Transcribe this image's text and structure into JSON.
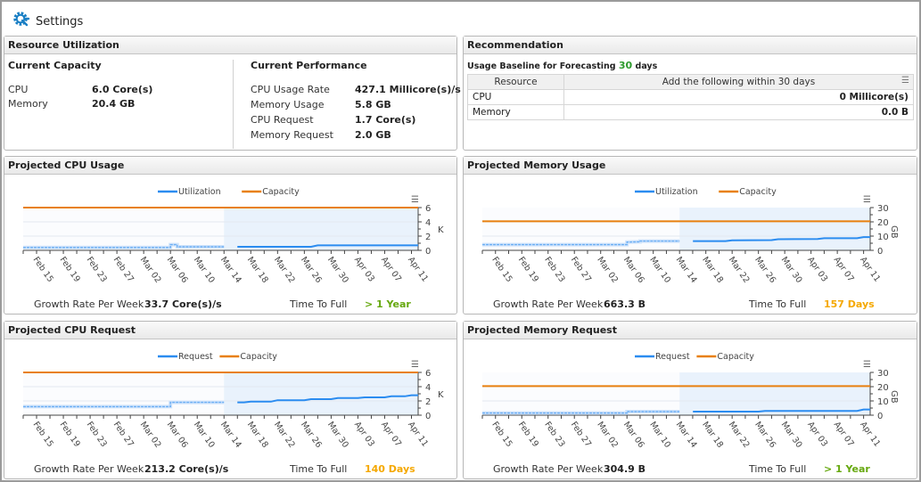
{
  "topbar": {
    "settings_label": "Settings",
    "icon": "gear-wrench-icon"
  },
  "resource_utilization": {
    "title": "Resource Utilization",
    "current_capacity": {
      "title": "Current Capacity",
      "rows": [
        {
          "label": "CPU",
          "value": "6.0 Core(s)"
        },
        {
          "label": "Memory",
          "value": "20.4 GB"
        }
      ]
    },
    "current_performance": {
      "title": "Current Performance",
      "rows": [
        {
          "label": "CPU Usage Rate",
          "value": "427.1 Millicore(s)/s"
        },
        {
          "label": "Memory Usage",
          "value": "5.8 GB"
        },
        {
          "label": "CPU Request",
          "value": "1.7 Core(s)"
        },
        {
          "label": "Memory Request",
          "value": "2.0 GB"
        }
      ]
    }
  },
  "recommendation": {
    "title": "Recommendation",
    "baseline_prefix": "Usage Baseline for Forecasting",
    "baseline_value": "30",
    "baseline_suffix": "days",
    "columns": [
      "Resource",
      "Add the following within 30 days"
    ],
    "rows": [
      {
        "resource": "CPU",
        "value": "0 Millicore(s)"
      },
      {
        "resource": "Memory",
        "value": "0.0 B"
      }
    ]
  },
  "colors": {
    "series": "#2b8cf0",
    "capacity": "#e8800f",
    "good": "#66a80f",
    "warn": "#f5a800",
    "baseline": "#2e9a2e"
  },
  "stats_labels": {
    "growth": "Growth Rate Per Week",
    "time_to_full": "Time To Full"
  },
  "charts": [
    {
      "title": "Projected CPU Usage",
      "growth": "33.7 Core(s)/s",
      "time_to_full": "> 1 Year",
      "ttf_status": "good"
    },
    {
      "title": "Projected Memory Usage",
      "growth": "663.3 B",
      "time_to_full": "157 Days",
      "ttf_status": "warn"
    },
    {
      "title": "Projected CPU Request",
      "growth": "213.2 Core(s)/s",
      "time_to_full": "140 Days",
      "ttf_status": "warn"
    },
    {
      "title": "Projected Memory Request",
      "growth": "304.9 B",
      "time_to_full": "> 1 Year",
      "ttf_status": "good"
    }
  ],
  "chart_data": [
    {
      "type": "line",
      "x_ticks": [
        "Feb 15",
        "Feb 19",
        "Feb 23",
        "Feb 27",
        "Mar 02",
        "Mar 06",
        "Mar 10",
        "Mar 14",
        "Mar 18",
        "Mar 22",
        "Mar 26",
        "Mar 30",
        "Apr 03",
        "Apr 07",
        "Apr 11"
      ],
      "xlim": [
        "2020-02-13",
        "2020-04-12"
      ],
      "forecast_start": "2020-03-14",
      "ylim": [
        0,
        6
      ],
      "y_ticks": [
        0,
        2,
        4,
        6
      ],
      "ylabel": "K",
      "grid": true,
      "legend": "top-center",
      "series": [
        {
          "name": "Utilization",
          "points": [
            [
              "2020-02-13",
              0.4
            ],
            [
              "2020-03-06",
              0.4
            ],
            [
              "2020-03-06",
              0.8
            ],
            [
              "2020-03-07",
              0.8
            ],
            [
              "2020-03-07",
              0.5
            ],
            [
              "2020-03-27",
              0.5
            ],
            [
              "2020-03-28",
              0.7
            ],
            [
              "2020-04-12",
              0.7
            ]
          ]
        },
        {
          "name": "Capacity",
          "points": [
            [
              "2020-02-13",
              6
            ],
            [
              "2020-04-12",
              6
            ]
          ]
        }
      ]
    },
    {
      "type": "line",
      "x_ticks": [
        "Feb 15",
        "Feb 19",
        "Feb 23",
        "Feb 27",
        "Mar 02",
        "Mar 06",
        "Mar 10",
        "Mar 14",
        "Mar 18",
        "Mar 22",
        "Mar 26",
        "Mar 30",
        "Apr 03",
        "Apr 07",
        "Apr 11"
      ],
      "xlim": [
        "2020-02-13",
        "2020-04-12"
      ],
      "forecast_start": "2020-03-14",
      "ylim": [
        0,
        30
      ],
      "y_ticks": [
        0,
        10,
        20,
        30
      ],
      "ylabel": "GB",
      "grid": true,
      "legend": "top-center",
      "series": [
        {
          "name": "Utilization",
          "points": [
            [
              "2020-02-13",
              4
            ],
            [
              "2020-03-06",
              4
            ],
            [
              "2020-03-06",
              5.8
            ],
            [
              "2020-03-08",
              6
            ],
            [
              "2020-03-08",
              6.5
            ],
            [
              "2020-03-21",
              6.5
            ],
            [
              "2020-03-22",
              7
            ],
            [
              "2020-03-28",
              7.2
            ],
            [
              "2020-03-29",
              7.8
            ],
            [
              "2020-04-04",
              8
            ],
            [
              "2020-04-05",
              8.5
            ],
            [
              "2020-04-10",
              8.5
            ],
            [
              "2020-04-11",
              9.3
            ],
            [
              "2020-04-12",
              9.3
            ]
          ]
        },
        {
          "name": "Capacity",
          "points": [
            [
              "2020-02-13",
              20.4
            ],
            [
              "2020-04-12",
              20.4
            ]
          ]
        }
      ]
    },
    {
      "type": "line",
      "x_ticks": [
        "Feb 15",
        "Feb 19",
        "Feb 23",
        "Feb 27",
        "Mar 02",
        "Mar 06",
        "Mar 10",
        "Mar 14",
        "Mar 18",
        "Mar 22",
        "Mar 26",
        "Mar 30",
        "Apr 03",
        "Apr 07",
        "Apr 11"
      ],
      "xlim": [
        "2020-02-13",
        "2020-04-12"
      ],
      "forecast_start": "2020-03-14",
      "ylim": [
        0,
        6
      ],
      "y_ticks": [
        0,
        2,
        4,
        6
      ],
      "ylabel": "K",
      "grid": true,
      "legend": "top-center",
      "series": [
        {
          "name": "Request",
          "points": [
            [
              "2020-02-13",
              1.2
            ],
            [
              "2020-03-06",
              1.2
            ],
            [
              "2020-03-06",
              1.8
            ],
            [
              "2020-03-17",
              1.8
            ],
            [
              "2020-03-18",
              1.9
            ],
            [
              "2020-03-21",
              1.9
            ],
            [
              "2020-03-22",
              2.1
            ],
            [
              "2020-03-26",
              2.1
            ],
            [
              "2020-03-27",
              2.25
            ],
            [
              "2020-03-30",
              2.25
            ],
            [
              "2020-03-31",
              2.4
            ],
            [
              "2020-04-03",
              2.4
            ],
            [
              "2020-04-04",
              2.5
            ],
            [
              "2020-04-07",
              2.5
            ],
            [
              "2020-04-08",
              2.65
            ],
            [
              "2020-04-10",
              2.65
            ],
            [
              "2020-04-11",
              2.8
            ],
            [
              "2020-04-12",
              2.8
            ]
          ]
        },
        {
          "name": "Capacity",
          "points": [
            [
              "2020-02-13",
              6
            ],
            [
              "2020-04-12",
              6
            ]
          ]
        }
      ]
    },
    {
      "type": "line",
      "x_ticks": [
        "Feb 15",
        "Feb 19",
        "Feb 23",
        "Feb 27",
        "Mar 02",
        "Mar 06",
        "Mar 10",
        "Mar 14",
        "Mar 18",
        "Mar 22",
        "Mar 26",
        "Mar 30",
        "Apr 03",
        "Apr 07",
        "Apr 11"
      ],
      "xlim": [
        "2020-02-13",
        "2020-04-12"
      ],
      "forecast_start": "2020-03-14",
      "ylim": [
        0,
        30
      ],
      "y_ticks": [
        0,
        10,
        20,
        30
      ],
      "ylabel": "GB",
      "grid": true,
      "legend": "top-center",
      "series": [
        {
          "name": "Request",
          "points": [
            [
              "2020-02-13",
              1.5
            ],
            [
              "2020-03-06",
              1.5
            ],
            [
              "2020-03-06",
              2.5
            ],
            [
              "2020-03-26",
              2.5
            ],
            [
              "2020-03-27",
              3
            ],
            [
              "2020-04-10",
              3
            ],
            [
              "2020-04-11",
              4
            ],
            [
              "2020-04-12",
              4
            ]
          ]
        },
        {
          "name": "Capacity",
          "points": [
            [
              "2020-02-13",
              20.4
            ],
            [
              "2020-04-12",
              20.4
            ]
          ]
        }
      ]
    }
  ]
}
